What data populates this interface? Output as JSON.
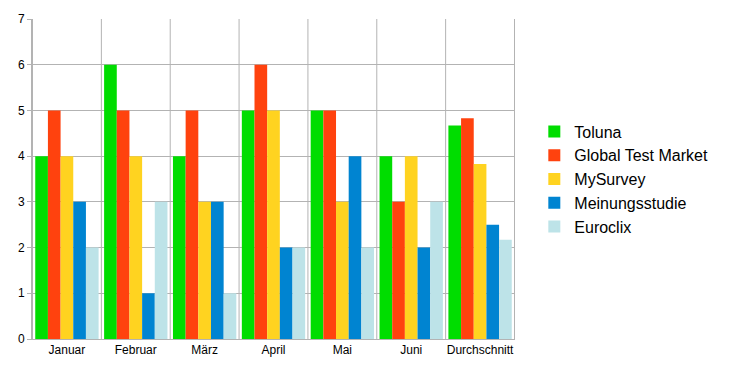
{
  "chart_data": {
    "type": "bar",
    "categories": [
      "Januar",
      "Februar",
      "März",
      "April",
      "Mai",
      "Juni",
      "Durchschnitt"
    ],
    "series": [
      {
        "name": "Toluna",
        "color": "#00dd00",
        "values": [
          4,
          6,
          4,
          5,
          5,
          4,
          4.67
        ]
      },
      {
        "name": "Global Test Market",
        "color": "#ff420e",
        "values": [
          5,
          5,
          5,
          6,
          5,
          3,
          4.83
        ]
      },
      {
        "name": "MySurvey",
        "color": "#ffd320",
        "values": [
          4,
          4,
          3,
          5,
          3,
          4,
          3.83
        ]
      },
      {
        "name": "Meinungsstudie",
        "color": "#0084d1",
        "values": [
          3,
          1,
          3,
          2,
          4,
          2,
          2.5
        ]
      },
      {
        "name": "Euroclix",
        "color": "#bde3e8",
        "values": [
          2,
          3,
          1,
          2,
          2,
          3,
          2.17
        ]
      }
    ],
    "ylim": [
      0,
      7
    ],
    "yticks": [
      0,
      1,
      2,
      3,
      4,
      5,
      6,
      7
    ],
    "grid": true,
    "legend": "right"
  }
}
